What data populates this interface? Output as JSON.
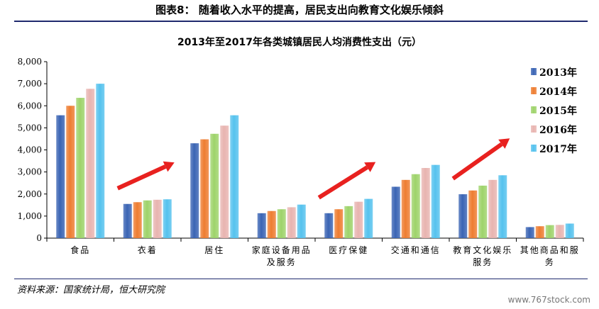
{
  "figure": {
    "title": "图表8： 随着收入水平的提高，居民支出向教育文化娱乐倾斜",
    "source": "资料来源：国家统计局，恒大研究院",
    "watermark": "www.767stock.com"
  },
  "chart_data": {
    "type": "bar",
    "title": "2013年至2017年各类城镇居民人均消费性支出（元）",
    "categories": [
      "食品",
      "衣着",
      "居住",
      "家庭设备用品及服务",
      "医疗保健",
      "交通和通信",
      "教育文化娱乐服务",
      "其他商品和服务"
    ],
    "category_lines": [
      [
        "食品"
      ],
      [
        "衣着"
      ],
      [
        "居住"
      ],
      [
        "家庭设备用品",
        "及服务"
      ],
      [
        "医疗保健"
      ],
      [
        "交通和通信"
      ],
      [
        "教育文化娱乐",
        "服务"
      ],
      [
        "其他商品和服",
        "务"
      ]
    ],
    "series": [
      {
        "name": "2013年",
        "color": "#3a64b4",
        "values": [
          5570,
          1550,
          4300,
          1130,
          1130,
          2330,
          1990,
          500
        ]
      },
      {
        "name": "2014年",
        "color": "#ee7d31",
        "values": [
          6000,
          1630,
          4480,
          1230,
          1310,
          2640,
          2160,
          540
        ]
      },
      {
        "name": "2015年",
        "color": "#9ed36a",
        "values": [
          6360,
          1710,
          4730,
          1310,
          1450,
          2900,
          2380,
          590
        ]
      },
      {
        "name": "2016年",
        "color": "#e8b4b0",
        "values": [
          6770,
          1740,
          5100,
          1400,
          1650,
          3180,
          2640,
          600
        ]
      },
      {
        "name": "2017年",
        "color": "#55c2ee",
        "values": [
          7000,
          1760,
          5570,
          1520,
          1780,
          3320,
          2850,
          660
        ]
      }
    ],
    "ylim": [
      0,
      8000
    ],
    "y_ticks": [
      "0",
      "1,000",
      "2,000",
      "3,000",
      "4,000",
      "5,000",
      "6,000",
      "7,000",
      "8,000"
    ],
    "legend_position": "right",
    "grid": false,
    "annotations": {
      "arrow_color": "#e8211f",
      "arrow_categories": [
        "衣着",
        "医疗保健",
        "教育文化娱乐服务"
      ]
    }
  }
}
